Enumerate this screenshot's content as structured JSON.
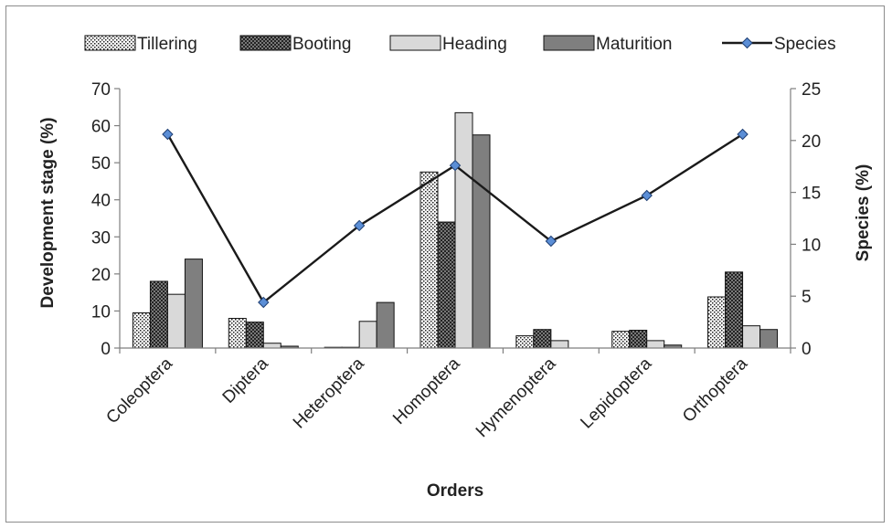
{
  "chart_data": {
    "type": "bar",
    "xlabel": "Orders",
    "ylabel": "Development stage (%)",
    "y2label": "Species (%)",
    "ylim": [
      0,
      70
    ],
    "y2lim": [
      0,
      25
    ],
    "yticks": [
      0,
      10,
      20,
      30,
      40,
      50,
      60,
      70
    ],
    "y2ticks": [
      0,
      5,
      10,
      15,
      20,
      25
    ],
    "categories": [
      "Coleoptera",
      "Diptera",
      "Heteroptera",
      "Homoptera",
      "Hymenoptera",
      "Lepidoptera",
      "Orthoptera"
    ],
    "series": [
      {
        "name": "Tillering",
        "type": "bar",
        "axis": "left",
        "pattern": "dots",
        "values": [
          9.5,
          8.0,
          0.2,
          47.5,
          3.3,
          4.5,
          13.8
        ]
      },
      {
        "name": "Booting",
        "type": "bar",
        "axis": "left",
        "pattern": "crosshatch",
        "values": [
          18.0,
          7.0,
          0.2,
          34.0,
          5.0,
          4.8,
          20.5
        ]
      },
      {
        "name": "Heading",
        "type": "bar",
        "axis": "left",
        "pattern": "solid-light",
        "color": "#d9d9d9",
        "values": [
          14.5,
          1.3,
          7.2,
          63.5,
          2.0,
          2.0,
          6.0
        ]
      },
      {
        "name": "Maturition",
        "type": "bar",
        "axis": "left",
        "pattern": "solid-dark",
        "color": "#7f7f7f",
        "values": [
          24.0,
          0.5,
          12.3,
          57.5,
          0.0,
          0.8,
          5.0
        ]
      },
      {
        "name": "Species",
        "type": "line",
        "axis": "right",
        "color": "#1a1a1a",
        "marker_color": "#5b8ed6",
        "values": [
          20.6,
          4.4,
          11.8,
          17.6,
          10.3,
          14.7,
          20.6
        ]
      }
    ],
    "legend_position": "top",
    "grid": false
  }
}
